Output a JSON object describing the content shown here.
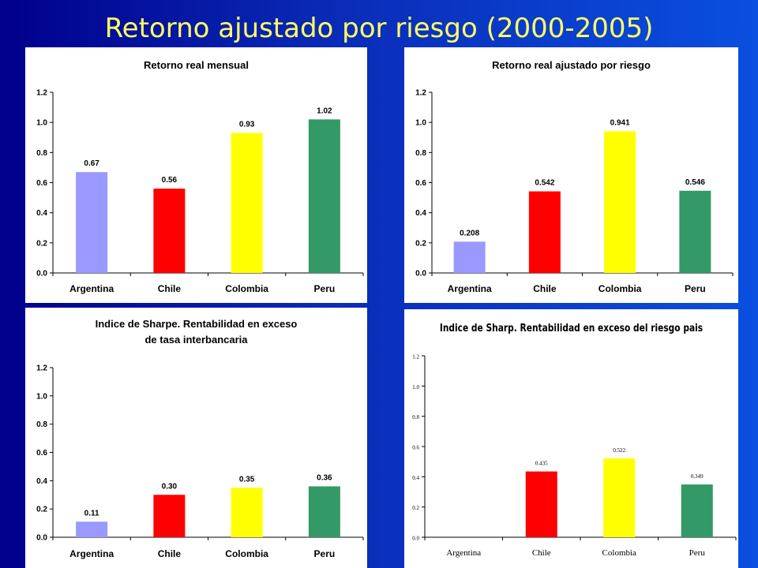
{
  "slide": {
    "title": "Retorno ajustado por riesgo (2000-2005)"
  },
  "chart_data": [
    {
      "type": "bar",
      "title_lines": [
        "Retorno real mensual"
      ],
      "categories": [
        "Argentina",
        "Chile",
        "Colombia",
        "Peru"
      ],
      "values": [
        0.67,
        0.56,
        0.93,
        1.02
      ],
      "value_labels": [
        "0.67",
        "0.56",
        "0.93",
        "1.02"
      ],
      "colors": [
        "#9999ff",
        "#ff0000",
        "#ffff00",
        "#339966"
      ],
      "ylim": [
        0,
        1.2
      ],
      "yticks": [
        "0.0",
        "0.2",
        "0.4",
        "0.6",
        "0.8",
        "1.0",
        "1.2"
      ],
      "grid": false,
      "legend": "none"
    },
    {
      "type": "bar",
      "title_lines": [
        "Retorno real ajustado por riesgo"
      ],
      "categories": [
        "Argentina",
        "Chile",
        "Colombia",
        "Peru"
      ],
      "values": [
        0.208,
        0.542,
        0.941,
        0.546
      ],
      "value_labels": [
        "0.208",
        "0.542",
        "0.941",
        "0.546"
      ],
      "colors": [
        "#9999ff",
        "#ff0000",
        "#ffff00",
        "#339966"
      ],
      "ylim": [
        0,
        1.2
      ],
      "yticks": [
        "0.0",
        "0.2",
        "0.4",
        "0.6",
        "0.8",
        "1.0",
        "1.2"
      ],
      "grid": false,
      "legend": "none"
    },
    {
      "type": "bar",
      "title_lines": [
        "Indice de Sharpe. Rentabilidad en exceso",
        "de tasa interbancaria"
      ],
      "categories": [
        "Argentina",
        "Chile",
        "Colombia",
        "Peru"
      ],
      "values": [
        0.11,
        0.3,
        0.35,
        0.36
      ],
      "value_labels": [
        "0.11",
        "0.30",
        "0.35",
        "0.36"
      ],
      "colors": [
        "#9999ff",
        "#ff0000",
        "#ffff00",
        "#339966"
      ],
      "ylim": [
        0,
        1.2
      ],
      "yticks": [
        "0.0",
        "0.2",
        "0.4",
        "0.6",
        "0.8",
        "1.0",
        "1.2"
      ],
      "grid": false,
      "legend": "none"
    },
    {
      "type": "bar",
      "title_lines": [
        "Indice de Sharp. Rentabilidad en exceso del riesgo pais"
      ],
      "categories": [
        "Argentina",
        "Chile",
        "Colombia",
        "Peru"
      ],
      "values": [
        0,
        0.435,
        0.522,
        0.349
      ],
      "value_labels": [
        "",
        "0.435",
        "0.522",
        "0.349"
      ],
      "colors": [
        "#9999ff",
        "#ff0000",
        "#ffff00",
        "#339966"
      ],
      "ylim": [
        0,
        1.2
      ],
      "yticks": [
        "0.0",
        "0.2",
        "0.4",
        "0.6",
        "0.8",
        "1.0",
        "1.2"
      ],
      "grid": false,
      "legend": "none"
    }
  ]
}
